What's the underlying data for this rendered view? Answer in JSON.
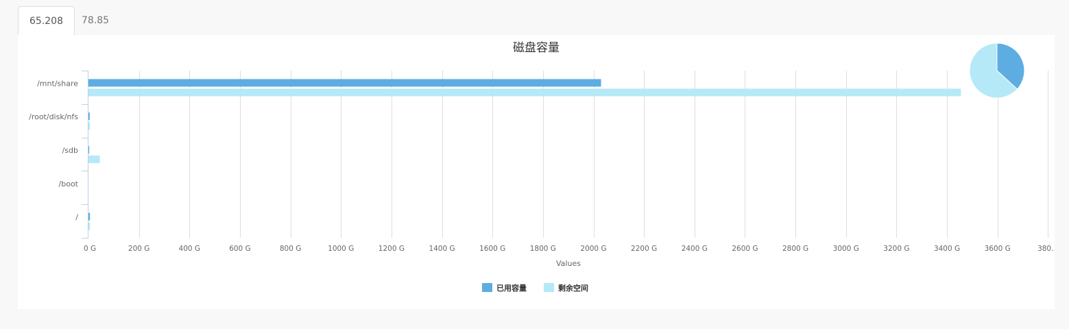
{
  "tabs": [
    {
      "label": "65.208",
      "active": true
    },
    {
      "label": "78.85",
      "active": false
    }
  ],
  "chart_data": {
    "type": "bar",
    "orientation": "horizontal",
    "title": "磁盘容量",
    "xlabel": "Values",
    "categories": [
      "/mnt/share",
      "/root/disk/nfs",
      "/sdb",
      "/boot",
      "/"
    ],
    "series": [
      {
        "name": "已用容量",
        "color": "#5dade2",
        "values": [
          2030,
          5,
          3,
          0.2,
          6
        ]
      },
      {
        "name": "剩余空间",
        "color": "#b5e9f7",
        "values": [
          3455,
          6,
          45,
          0.3,
          6
        ]
      }
    ],
    "x_ticks": [
      "0 G",
      "200 G",
      "400 G",
      "600 G",
      "800 G",
      "1000 G",
      "1200 G",
      "1400 G",
      "1600 G",
      "1800 G",
      "2000 G",
      "2200 G",
      "2400 G",
      "2600 G",
      "2800 G",
      "3000 G",
      "3200 G",
      "3400 G",
      "3600 G",
      "380…"
    ],
    "xlim": [
      0,
      3800
    ],
    "grid": true,
    "legend_position": "bottom-center",
    "pie": {
      "slices": [
        {
          "name": "已用容量",
          "value": 2044.2,
          "color": "#5dade2"
        },
        {
          "name": "剩余空间",
          "value": 3512.3,
          "color": "#b5e9f7"
        }
      ],
      "position": "top-right"
    }
  }
}
